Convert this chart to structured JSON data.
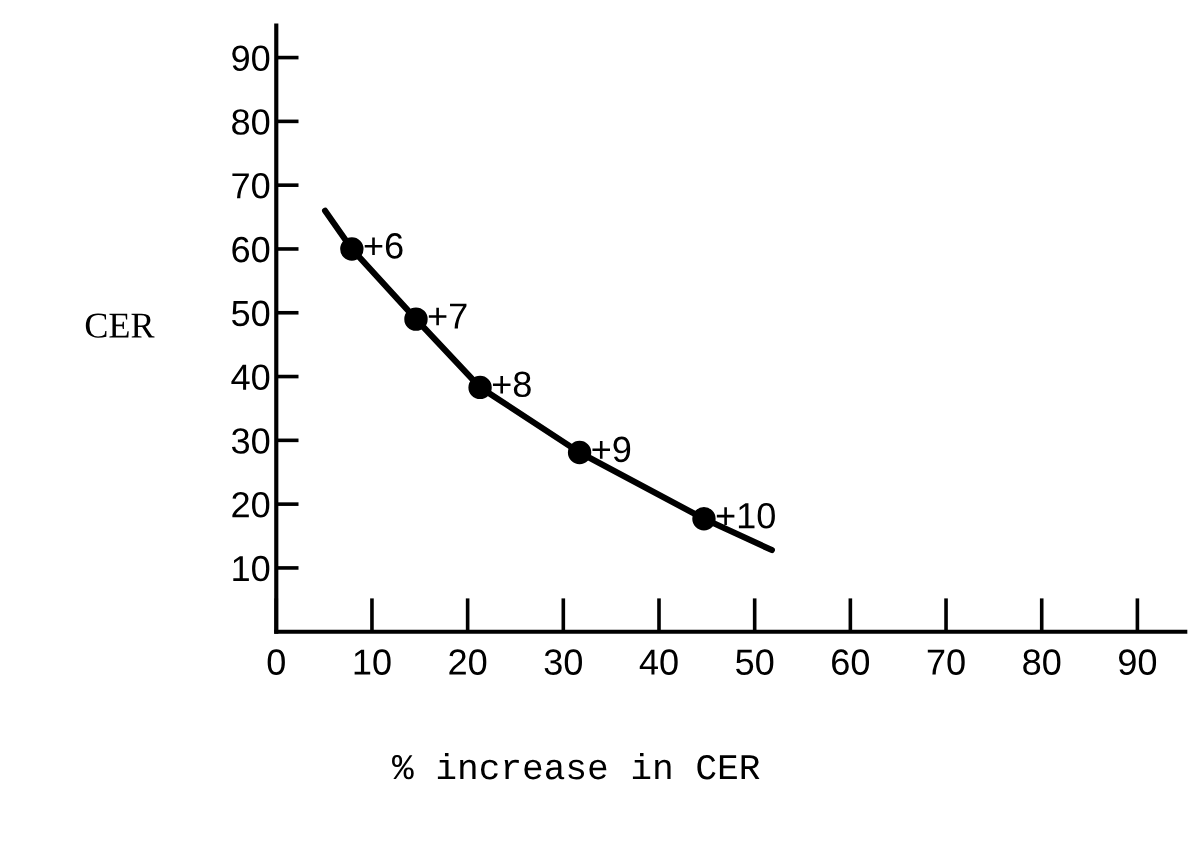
{
  "chart_data": {
    "type": "line",
    "xlabel": "% increase in CER",
    "ylabel": "CER",
    "series": [
      {
        "color": "#000000",
        "x": [
          5.1,
          7.9,
          14.6,
          21.3,
          31.7,
          44.7,
          51.8
        ],
        "values": [
          66,
          60,
          49,
          38.3,
          28.1,
          17.7,
          12.8
        ]
      },
      {
        "type": "scatter",
        "color": "#000000",
        "marker": "circle",
        "x": [
          7.9,
          14.6,
          21.3,
          31.7,
          44.7
        ],
        "values": [
          60,
          49,
          38.3,
          28.1,
          17.7
        ]
      }
    ],
    "annotations": [
      {
        "text": "+6",
        "x": 7.9,
        "y": 60
      },
      {
        "text": "+7",
        "x": 14.6,
        "y": 49
      },
      {
        "text": "+8",
        "x": 21.3,
        "y": 38.3
      },
      {
        "text": "+9",
        "x": 31.7,
        "y": 28.1
      },
      {
        "text": "+10",
        "x": 44.7,
        "y": 17.7
      }
    ],
    "xlim": [
      0,
      95
    ],
    "ylim": [
      0,
      95
    ],
    "xticks": [
      0,
      10,
      20,
      30,
      40,
      50,
      60,
      70,
      80,
      90
    ],
    "yticks": [
      10,
      20,
      30,
      40,
      50,
      60,
      70,
      80,
      90
    ],
    "grid": false,
    "legend": false
  }
}
